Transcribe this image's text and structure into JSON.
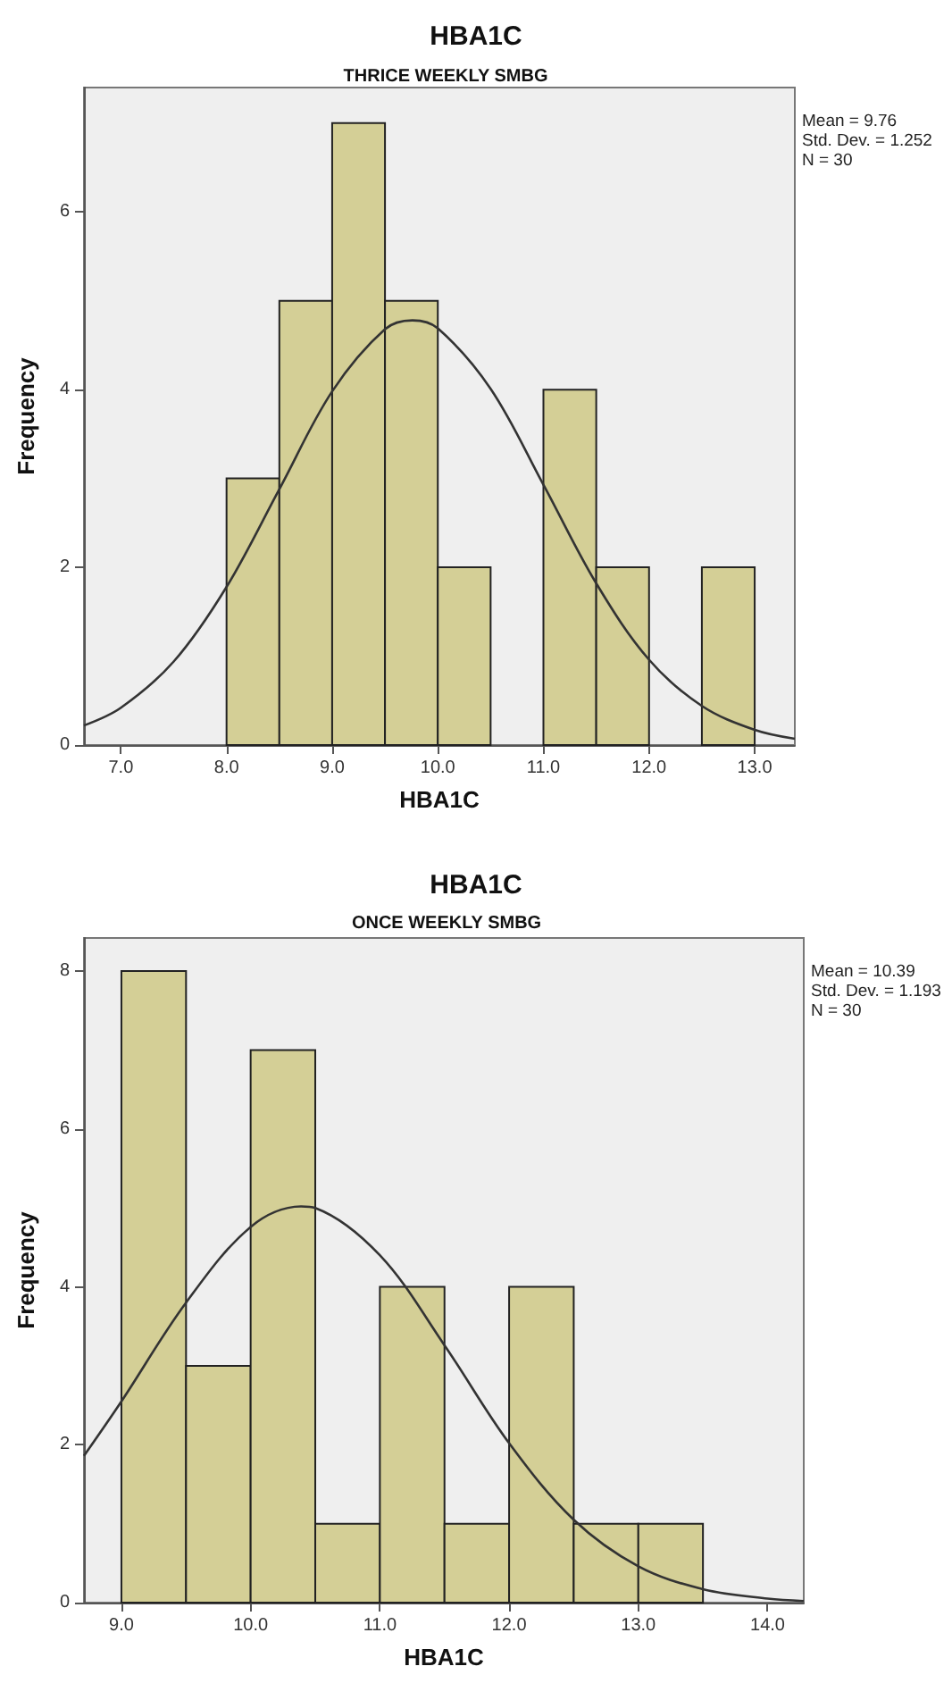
{
  "chart_data": [
    {
      "type": "histogram",
      "title": "HBA1C",
      "subtitle": "THRICE WEEKLY SMBG",
      "xlabel": "HBA1C",
      "ylabel": "Frequency",
      "bins": [
        8.0,
        8.5,
        9.0,
        9.5,
        10.0,
        10.5,
        11.0,
        11.5,
        12.0,
        12.5,
        13.0
      ],
      "series": [
        {
          "type": "histogram",
          "color": "#d4cf96",
          "values": [
            3,
            5,
            7,
            5,
            2,
            0,
            4,
            2,
            0,
            2
          ]
        },
        {
          "type": "line",
          "color": "#333333",
          "x": [
            6.65,
            7.0,
            7.5,
            8.0,
            8.5,
            9.0,
            9.5,
            9.76,
            10.0,
            10.5,
            11.0,
            11.5,
            12.0,
            12.5,
            13.0,
            13.38
          ],
          "values": [
            0.22,
            0.42,
            0.94,
            1.78,
            2.88,
            3.98,
            4.68,
            4.78,
            4.69,
            4.01,
            2.93,
            1.82,
            0.96,
            0.44,
            0.17,
            0.07
          ]
        }
      ],
      "xlim": [
        6.65,
        13.38
      ],
      "xticks": [
        {
          "value": 7,
          "label": "7.0"
        },
        {
          "value": 8,
          "label": "8.0"
        },
        {
          "value": 9,
          "label": "9.0"
        },
        {
          "value": 10,
          "label": "10.0"
        },
        {
          "value": 11,
          "label": "11.0"
        },
        {
          "value": 12,
          "label": "12.0"
        },
        {
          "value": 13,
          "label": "13.0"
        }
      ],
      "ylim": [
        0,
        7.4
      ],
      "yticks": [
        0,
        2,
        4,
        6
      ],
      "marker": "none",
      "annotations": [
        "Mean = 9.76",
        "Std. Dev. = 1.252",
        "N = 30"
      ]
    },
    {
      "type": "histogram",
      "title": "HBA1C",
      "subtitle": "ONCE WEEKLY SMBG",
      "xlabel": "HBA1C",
      "ylabel": "Frequency",
      "bins": [
        9.0,
        9.5,
        10.0,
        10.5,
        11.0,
        11.5,
        12.0,
        12.5,
        13.0,
        13.5
      ],
      "series": [
        {
          "type": "histogram",
          "color": "#d4cf96",
          "values": [
            8,
            3,
            7,
            1,
            4,
            1,
            4,
            1,
            1
          ]
        },
        {
          "type": "line",
          "color": "#333333",
          "x": [
            8.71,
            9.0,
            9.5,
            10.0,
            10.39,
            10.5,
            11.0,
            11.5,
            12.0,
            12.5,
            13.0,
            13.5,
            14.0,
            14.28
          ],
          "values": [
            1.86,
            2.55,
            3.8,
            4.76,
            5.02,
            5.0,
            4.4,
            3.26,
            2.02,
            1.05,
            0.46,
            0.17,
            0.05,
            0.02
          ]
        }
      ],
      "xlim": [
        8.71,
        14.28
      ],
      "xticks": [
        {
          "value": 9,
          "label": "9.0"
        },
        {
          "value": 10,
          "label": "10.0"
        },
        {
          "value": 11,
          "label": "11.0"
        },
        {
          "value": 12,
          "label": "12.0"
        },
        {
          "value": 13,
          "label": "13.0"
        },
        {
          "value": 14,
          "label": "14.0"
        }
      ],
      "ylim": [
        0,
        8.42
      ],
      "yticks": [
        0,
        2,
        4,
        6,
        8
      ],
      "marker": "none",
      "annotations": [
        "Mean = 10.39",
        "Std. Dev. = 1.193",
        "N = 30"
      ]
    }
  ]
}
